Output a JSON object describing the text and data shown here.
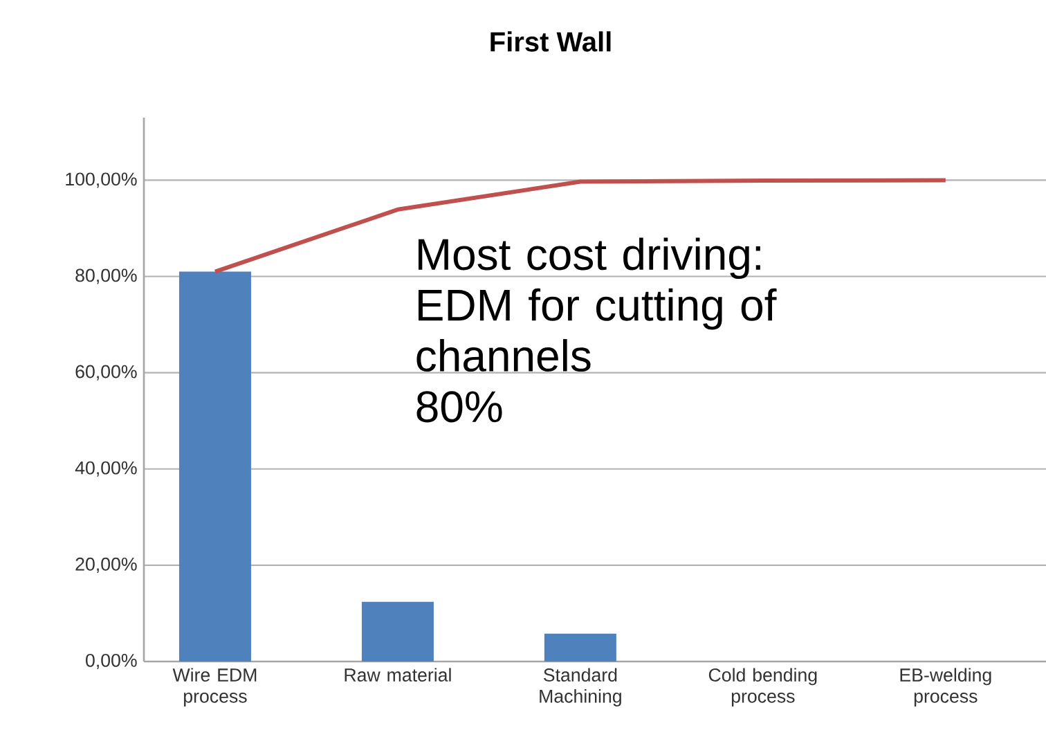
{
  "chart_data": {
    "type": "bar",
    "title": "First Wall",
    "categories": [
      "Wire EDM process",
      "Raw material",
      "Standard Machining",
      "Cold bending process",
      "EB-welding process"
    ],
    "series": [
      {
        "color": "#4f81bd",
        "values": [
          81,
          12.4,
          5.8,
          0,
          0
        ]
      },
      {
        "type": "line",
        "color": "#c0504d",
        "values": [
          81,
          93.9,
          99.7,
          99.9,
          100
        ]
      }
    ],
    "ylim": [
      0,
      113
    ],
    "yticks": [
      {
        "value": 0,
        "label": "0,00%"
      },
      {
        "value": 20,
        "label": "20,00%"
      },
      {
        "value": 40,
        "label": "40,00%"
      },
      {
        "value": 60,
        "label": "60,00%"
      },
      {
        "value": 80,
        "label": "80,00%"
      },
      {
        "value": 100,
        "label": "100,00%"
      }
    ],
    "grid": "y",
    "annotations": [
      "Most cost driving: EDM for cutting of channels",
      "80%"
    ]
  }
}
